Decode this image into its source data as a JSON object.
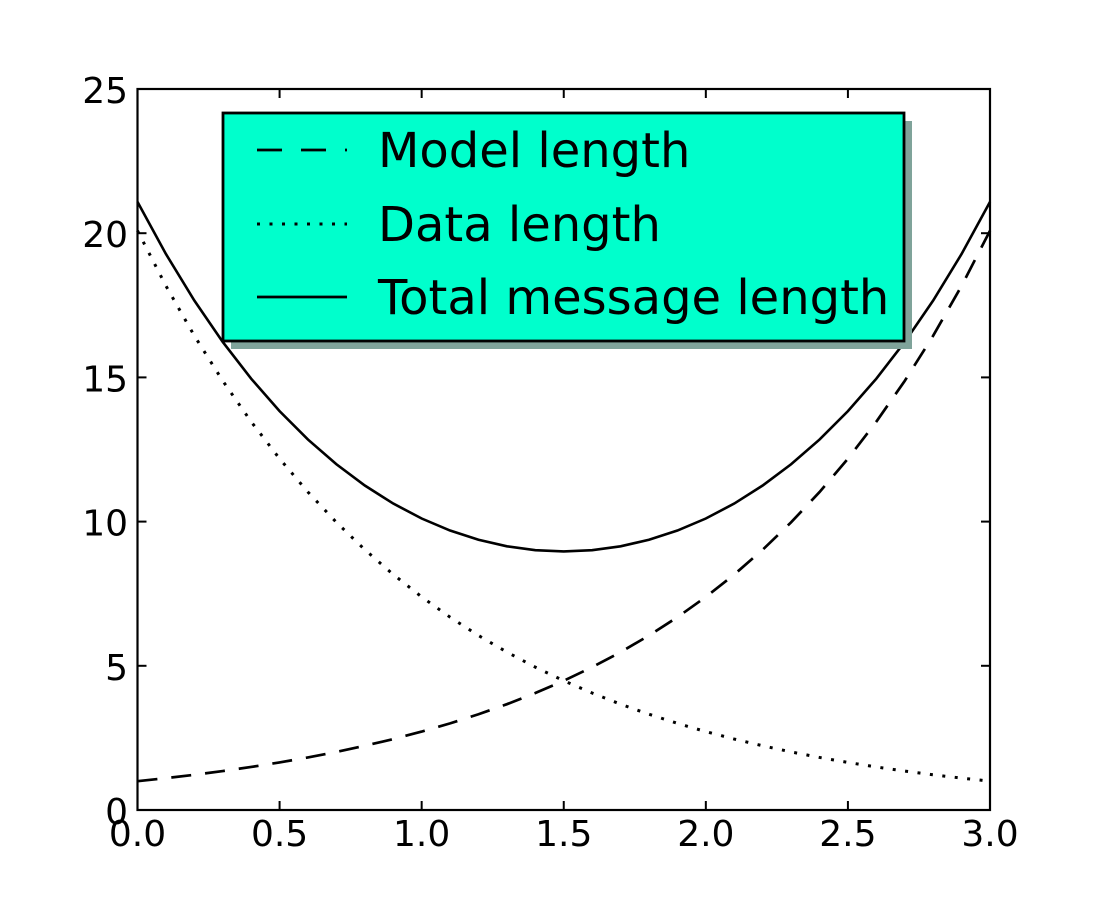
{
  "colors": {
    "figure_background": "#ffffff",
    "axes_background": "#ffffff",
    "frame": "#000000",
    "tick_label": "#000000",
    "legend_shadow": "#7FA39A"
  },
  "chart_data": {
    "type": "line",
    "title": "",
    "grid": false,
    "xlim": [
      0.0,
      3.0
    ],
    "ylim": [
      0,
      25
    ],
    "xticks": [
      0.0,
      0.5,
      1.0,
      1.5,
      2.0,
      2.5,
      3.0
    ],
    "xtick_labels": [
      "0.0",
      "0.5",
      "1.0",
      "1.5",
      "2.0",
      "2.5",
      "3.0"
    ],
    "yticks": [
      0,
      5,
      10,
      15,
      20,
      25
    ],
    "ytick_labels": [
      "0",
      "5",
      "10",
      "15",
      "20",
      "25"
    ],
    "x": [
      0.0,
      0.1,
      0.2,
      0.3,
      0.4,
      0.5,
      0.6,
      0.7,
      0.8,
      0.9,
      1.0,
      1.1,
      1.2,
      1.3,
      1.4,
      1.5,
      1.6,
      1.7,
      1.8,
      1.9,
      2.0,
      2.1,
      2.2,
      2.3,
      2.4,
      2.5,
      2.6,
      2.7,
      2.8,
      2.9,
      3.0
    ],
    "series": [
      {
        "name": "Model length",
        "style": "dashed",
        "color": "#000000",
        "formula": "exp(x)",
        "values": [
          1.0,
          1.105,
          1.221,
          1.35,
          1.492,
          1.649,
          1.822,
          2.014,
          2.226,
          2.46,
          2.718,
          3.004,
          3.32,
          3.669,
          4.055,
          4.482,
          4.953,
          5.474,
          6.05,
          6.686,
          7.389,
          8.166,
          9.025,
          9.974,
          11.023,
          12.182,
          13.464,
          14.88,
          16.445,
          18.174,
          20.086
        ]
      },
      {
        "name": "Data length",
        "style": "dotted",
        "color": "#000000",
        "formula": "exp(3-x)",
        "values": [
          20.086,
          18.174,
          16.445,
          14.88,
          13.464,
          12.182,
          11.023,
          9.974,
          9.025,
          8.166,
          7.389,
          6.686,
          6.05,
          5.474,
          4.953,
          4.482,
          4.055,
          3.669,
          3.32,
          3.004,
          2.718,
          2.46,
          2.226,
          2.014,
          1.822,
          1.649,
          1.492,
          1.35,
          1.221,
          1.105,
          1.0
        ]
      },
      {
        "name": "Total message length",
        "style": "solid",
        "color": "#000000",
        "formula": "exp(x)+exp(3-x)",
        "values": [
          21.086,
          19.279,
          17.666,
          16.23,
          14.956,
          13.831,
          12.845,
          11.988,
          11.251,
          10.626,
          10.107,
          9.69,
          9.37,
          9.143,
          9.008,
          8.964,
          9.008,
          9.143,
          9.37,
          9.69,
          10.107,
          10.626,
          11.251,
          11.988,
          12.845,
          13.831,
          14.956,
          16.23,
          17.666,
          19.279,
          21.086
        ]
      }
    ],
    "legend": {
      "position": "upper center",
      "shadow": true,
      "facecolor": "#00FFCC",
      "edgecolor": "#000000",
      "entries": [
        "Model length",
        "Data length",
        "Total message length"
      ]
    }
  }
}
